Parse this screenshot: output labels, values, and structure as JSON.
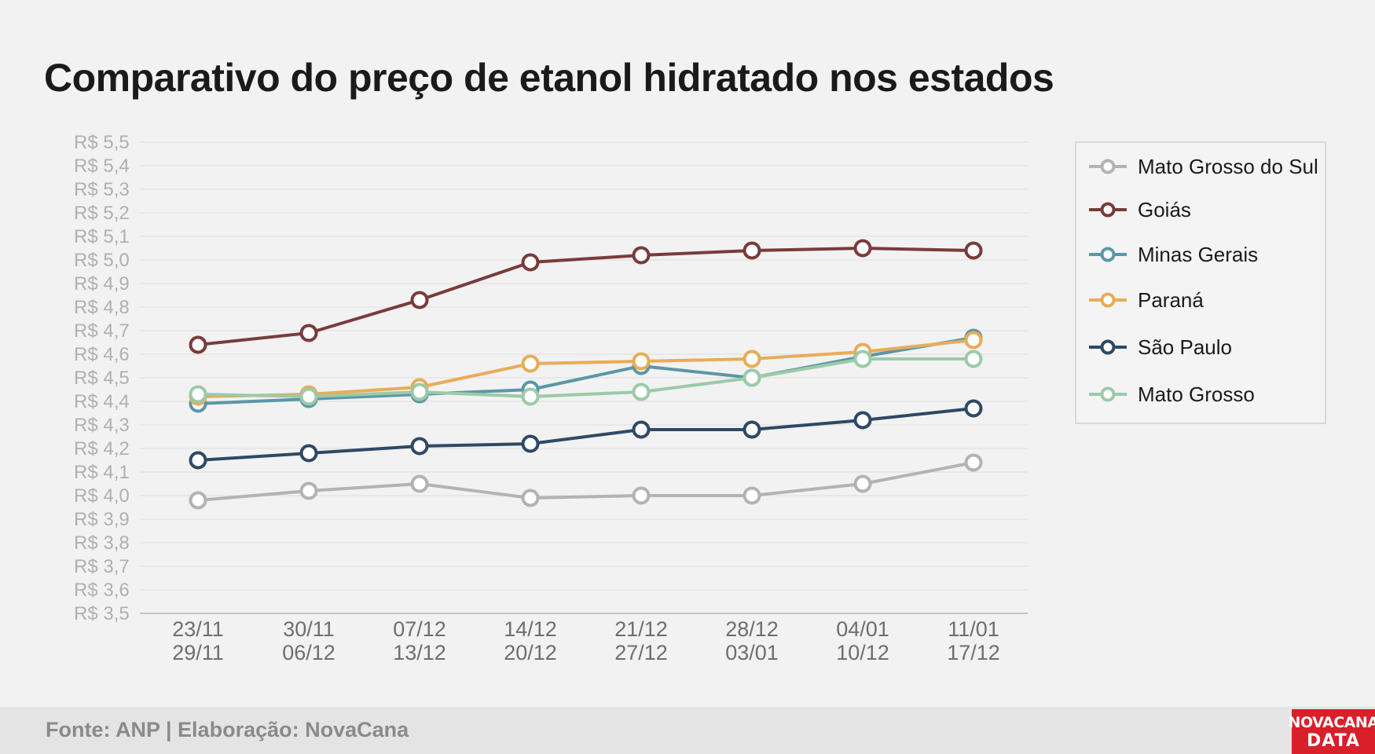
{
  "title": "Comparativo do preço de etanol hidratado nos estados",
  "footer": {
    "source": "Fonte: ANP | Elaboração: NovaCana",
    "logo_line1": "NOVACANA",
    "logo_line2": "DATA"
  },
  "chart_data": {
    "type": "line",
    "title": "Comparativo do preço de etanol hidratado nos estados",
    "xlabel": "",
    "ylabel": "",
    "ylim": [
      3.5,
      5.5
    ],
    "ytick_step": 0.1,
    "ytick_labels": [
      "R$ 3,5",
      "R$ 3,6",
      "R$ 3,7",
      "R$ 3,8",
      "R$ 3,9",
      "R$ 4,0",
      "R$ 4,1",
      "R$ 4,2",
      "R$ 4,3",
      "R$ 4,4",
      "R$ 4,5",
      "R$ 4,6",
      "R$ 4,7",
      "R$ 4,8",
      "R$ 4,9",
      "R$ 5,0",
      "R$ 5,1",
      "R$ 5,2",
      "R$ 5,3",
      "R$ 5,4",
      "R$ 5,5"
    ],
    "grid": true,
    "legend_position": "right",
    "categories": [
      [
        "23/11",
        "29/11"
      ],
      [
        "30/11",
        "06/12"
      ],
      [
        "07/12",
        "13/12"
      ],
      [
        "14/12",
        "20/12"
      ],
      [
        "21/12",
        "27/12"
      ],
      [
        "28/12",
        "03/01"
      ],
      [
        "04/01",
        "10/12"
      ],
      [
        "11/01",
        "17/12"
      ]
    ],
    "series": [
      {
        "name": "Mato Grosso do Sul",
        "color": "#b3b3b3",
        "values": [
          3.98,
          4.02,
          4.05,
          3.99,
          4.0,
          4.0,
          4.05,
          4.14
        ]
      },
      {
        "name": "Goiás",
        "color": "#7a3b3b",
        "values": [
          4.64,
          4.69,
          4.83,
          4.99,
          5.02,
          5.04,
          5.05,
          5.04
        ]
      },
      {
        "name": "Minas Gerais",
        "color": "#5b97a6",
        "values": [
          4.39,
          4.41,
          4.43,
          4.45,
          4.55,
          4.5,
          4.59,
          4.67
        ]
      },
      {
        "name": "Paraná",
        "color": "#e8ac58",
        "values": [
          4.42,
          4.43,
          4.46,
          4.56,
          4.57,
          4.58,
          4.61,
          4.66
        ]
      },
      {
        "name": "São Paulo",
        "color": "#2e4966",
        "values": [
          4.15,
          4.18,
          4.21,
          4.22,
          4.28,
          4.28,
          4.32,
          4.37
        ]
      },
      {
        "name": "Mato Grosso",
        "color": "#9ccaa8",
        "values": [
          4.43,
          4.42,
          4.44,
          4.42,
          4.44,
          4.5,
          4.58,
          4.58
        ]
      }
    ]
  }
}
